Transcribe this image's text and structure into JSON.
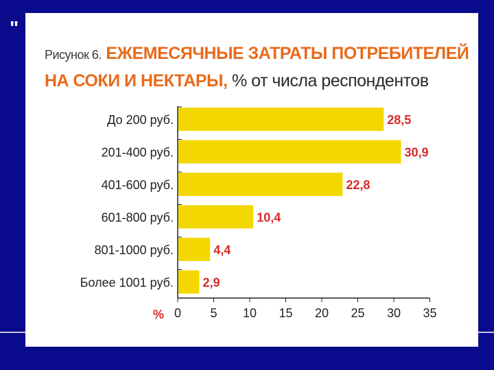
{
  "chart_data": {
    "type": "bar",
    "orientation": "horizontal",
    "figure_label": "Рисунок 6.",
    "title": "ЕЖЕМЕСЯЧНЫЕ ЗАТРАТЫ ПОТРЕБИТЕЛЕЙ НА СОКИ И НЕКТАРЫ,",
    "title_line1": "ЕЖЕМЕСЯЧНЫЕ ЗАТРАТЫ ПОТРЕБИТЕЛЕЙ",
    "title_line2": "НА СОКИ И НЕКТАРЫ,",
    "subtitle": "% от числа респондентов",
    "categories": [
      "До 200 руб.",
      "201-400 руб.",
      "401-600 руб.",
      "601-800 руб.",
      "801-1000 руб.",
      "Более 1001 руб."
    ],
    "values": [
      28.5,
      30.9,
      22.8,
      10.4,
      4.4,
      2.9
    ],
    "value_labels": [
      "28,5",
      "30,9",
      "22,8",
      "10,4",
      "4,4",
      "2,9"
    ],
    "xlabel": "%",
    "xlim": [
      0,
      35
    ],
    "xticks": [
      0,
      5,
      10,
      15,
      20,
      25,
      30,
      35
    ],
    "grid": false,
    "colors": {
      "bar": "#f2d800",
      "value_label": "#d8282a",
      "title": "#e86a1a",
      "background": "#0a0a8c"
    }
  }
}
